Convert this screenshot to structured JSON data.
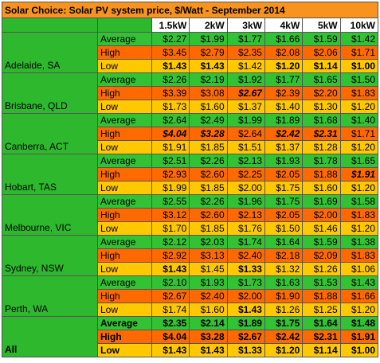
{
  "header": {
    "title": "Solar Choice: Solar PV system price, $/Watt - September 2014"
  },
  "table": {
    "columns": [
      "1.5kW",
      "2kW",
      "3kW",
      "4kW",
      "5kW",
      "10kW"
    ],
    "groups": [
      {
        "name": "Adelaide, SA",
        "rows": [
          {
            "label": "Average",
            "values": [
              "$2.27",
              "$1.99",
              "$1.77",
              "$1.66",
              "$1.59",
              "$1.42"
            ]
          },
          {
            "label": "High",
            "values": [
              "$3.45",
              "$2.79",
              "$2.35",
              "$2.08",
              "$2.06",
              "$1.71"
            ]
          },
          {
            "label": "Low",
            "values": [
              "$1.43",
              "$1.43",
              "$1.42",
              "$1.20",
              "$1.14",
              "$1.00"
            ],
            "bold": [
              0,
              1,
              3,
              4,
              5
            ]
          }
        ]
      },
      {
        "name": "Brisbane, QLD",
        "rows": [
          {
            "label": "Average",
            "values": [
              "$2.26",
              "$2.19",
              "$1.92",
              "$1.77",
              "$1.65",
              "$1.50"
            ]
          },
          {
            "label": "High",
            "values": [
              "$3.39",
              "$3.08",
              "$2.67",
              "$2.39",
              "$2.20",
              "$1.83"
            ],
            "bold": [
              2
            ],
            "italic": [
              2
            ]
          },
          {
            "label": "Low",
            "values": [
              "$1.73",
              "$1.60",
              "$1.37",
              "$1.40",
              "$1.30",
              "$1.20"
            ]
          }
        ]
      },
      {
        "name": "Canberra, ACT",
        "rows": [
          {
            "label": "Average",
            "values": [
              "$2.64",
              "$2.49",
              "$1.99",
              "$1.89",
              "$1.68",
              "$1.40"
            ]
          },
          {
            "label": "High",
            "values": [
              "$4.04",
              "$3.28",
              "$2.64",
              "$2.42",
              "$2.31",
              "$1.71"
            ],
            "bold": [
              0,
              1,
              3,
              4
            ],
            "italic": [
              0,
              1,
              3,
              4
            ]
          },
          {
            "label": "Low",
            "values": [
              "$1.91",
              "$1.85",
              "$1.51",
              "$1.37",
              "$1.28",
              "$1.20"
            ]
          }
        ]
      },
      {
        "name": "Hobart, TAS",
        "rows": [
          {
            "label": "Average",
            "values": [
              "$2.51",
              "$2.26",
              "$2.13",
              "$1.93",
              "$1.78",
              "$1.65"
            ]
          },
          {
            "label": "High",
            "values": [
              "$2.93",
              "$2.60",
              "$2.25",
              "$2.05",
              "$1.88",
              "$1.91"
            ],
            "bold": [
              5
            ],
            "italic": [
              5
            ]
          },
          {
            "label": "Low",
            "values": [
              "$1.99",
              "$1.85",
              "$2.00",
              "$1.75",
              "$1.60",
              "$1.20"
            ]
          }
        ]
      },
      {
        "name": "Melbourne, VIC",
        "rows": [
          {
            "label": "Average",
            "values": [
              "$2.55",
              "$2.26",
              "$1.96",
              "$1.75",
              "$1.69",
              "$1.58"
            ]
          },
          {
            "label": "High",
            "values": [
              "$3.12",
              "$2.60",
              "$2.13",
              "$2.05",
              "$2.00",
              "$1.83"
            ]
          },
          {
            "label": "Low",
            "values": [
              "$1.70",
              "$1.85",
              "$1.76",
              "$1.50",
              "$1.46",
              "$1.20"
            ]
          }
        ]
      },
      {
        "name": "Sydney, NSW",
        "rows": [
          {
            "label": "Average",
            "values": [
              "$2.12",
              "$2.03",
              "$1.74",
              "$1.64",
              "$1.59",
              "$1.38"
            ]
          },
          {
            "label": "High",
            "values": [
              "$2.92",
              "$3.13",
              "$2.40",
              "$2.18",
              "$2.09",
              "$1.83"
            ]
          },
          {
            "label": "Low",
            "values": [
              "$1.43",
              "$1.45",
              "$1.33",
              "$1.32",
              "$1.26",
              "$1.06"
            ],
            "bold": [
              0,
              2
            ]
          }
        ]
      },
      {
        "name": "Perth, WA",
        "rows": [
          {
            "label": "Average",
            "values": [
              "$2.10",
              "$1.93",
              "$1.73",
              "$1.63",
              "$1.53",
              "$1.43"
            ]
          },
          {
            "label": "High",
            "values": [
              "$2.67",
              "$2.40",
              "$2.00",
              "$1.90",
              "$1.88",
              "$1.66"
            ]
          },
          {
            "label": "Low",
            "values": [
              "$1.74",
              "$1.60",
              "$1.43",
              "$1.26",
              "$1.25",
              "$1.20"
            ],
            "bold": [
              2
            ]
          }
        ]
      },
      {
        "name": "All",
        "bold": true,
        "rows": [
          {
            "label": "Average",
            "values": [
              "$2.35",
              "$2.14",
              "$1.89",
              "$1.75",
              "$1.64",
              "$1.48"
            ]
          },
          {
            "label": "High",
            "values": [
              "$4.04",
              "$3.28",
              "$2.67",
              "$2.42",
              "$2.31",
              "$1.91"
            ]
          },
          {
            "label": "Low",
            "values": [
              "$1.43",
              "$1.43",
              "$1.33",
              "$1.20",
              "$1.14",
              "$1.00"
            ]
          }
        ]
      }
    ]
  }
}
